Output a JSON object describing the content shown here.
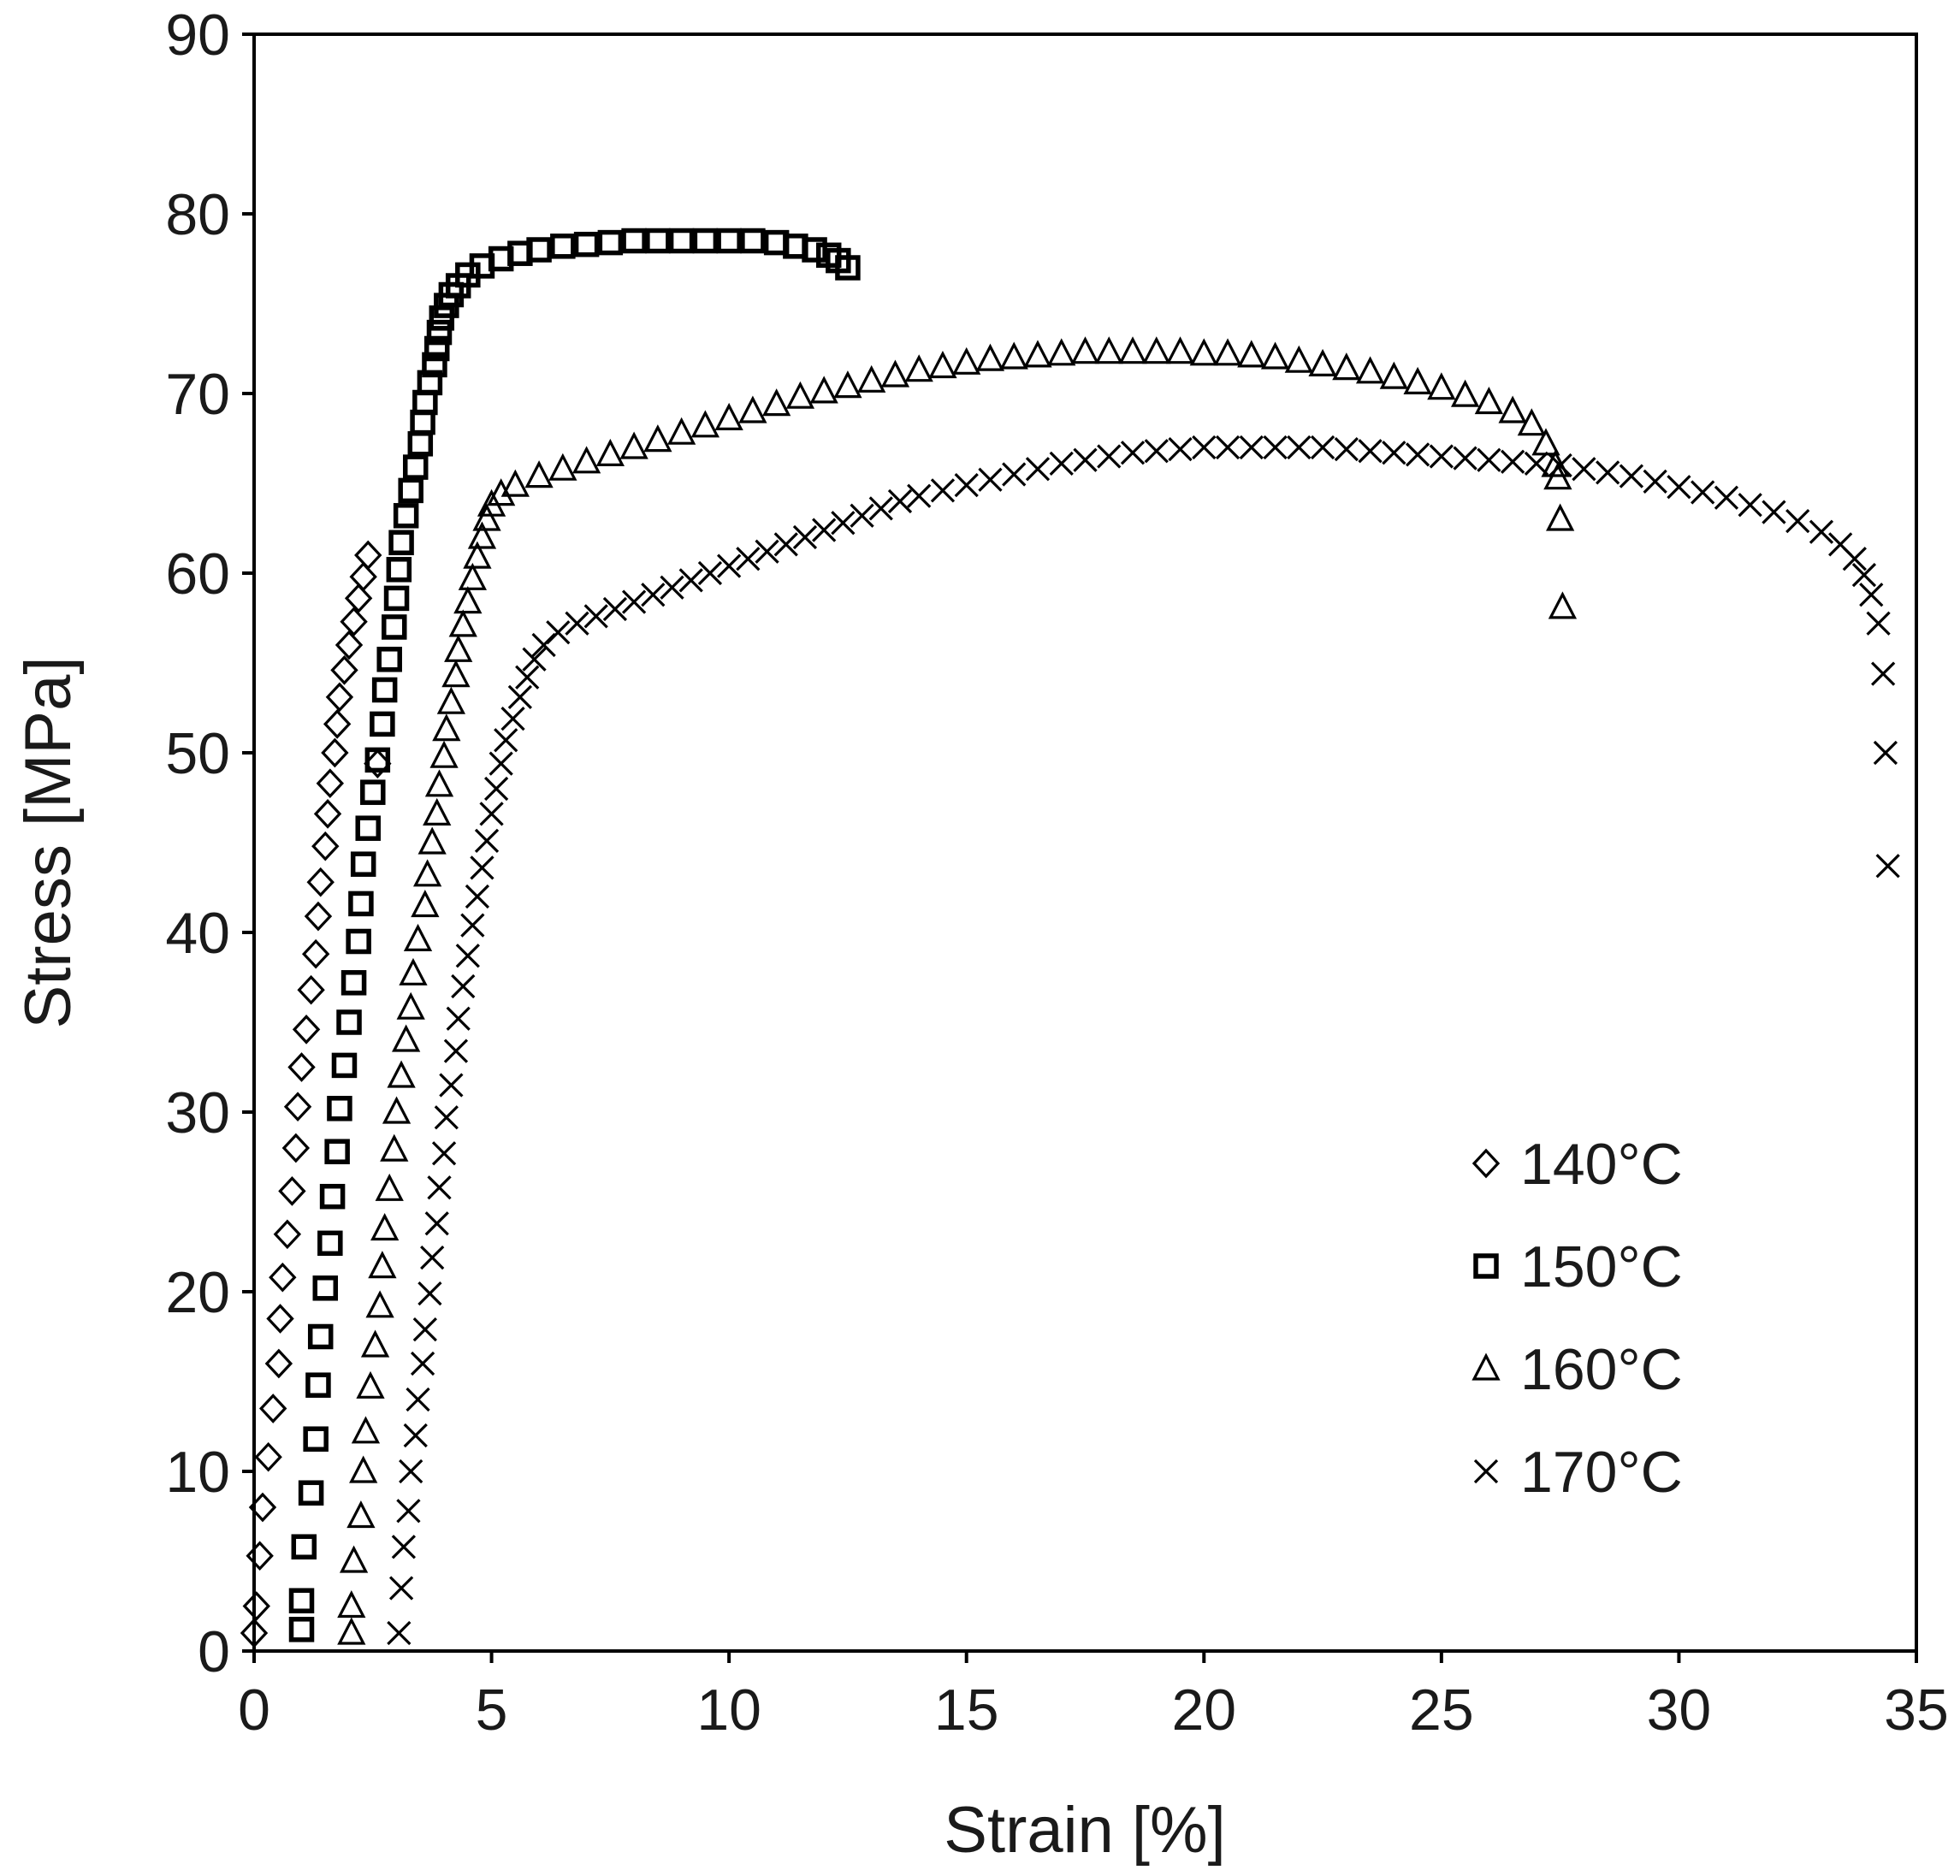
{
  "chart_data": {
    "type": "scatter",
    "title": "",
    "xlabel": "Strain [%]",
    "ylabel": "Stress [MPa]",
    "xlim": [
      0,
      35
    ],
    "ylim": [
      0,
      90
    ],
    "xticks": [
      0,
      5,
      10,
      15,
      20,
      25,
      30,
      35
    ],
    "yticks": [
      0,
      10,
      20,
      30,
      40,
      50,
      60,
      70,
      80,
      90
    ],
    "grid": false,
    "legend_position": "bottom-right",
    "series": [
      {
        "name": "140°C",
        "marker": "diamond",
        "points": [
          [
            0,
            1
          ],
          [
            0.05,
            2.5
          ],
          [
            0.12,
            5.3
          ],
          [
            0.18,
            8
          ],
          [
            0.3,
            10.8
          ],
          [
            0.4,
            13.5
          ],
          [
            0.52,
            16
          ],
          [
            0.55,
            18.5
          ],
          [
            0.6,
            20.8
          ],
          [
            0.7,
            23.2
          ],
          [
            0.8,
            25.6
          ],
          [
            0.88,
            28
          ],
          [
            0.92,
            30.3
          ],
          [
            1.0,
            32.5
          ],
          [
            1.1,
            34.6
          ],
          [
            1.2,
            36.8
          ],
          [
            1.3,
            38.8
          ],
          [
            1.35,
            40.9
          ],
          [
            1.4,
            42.8
          ],
          [
            1.5,
            44.8
          ],
          [
            1.55,
            46.6
          ],
          [
            1.6,
            48.3
          ],
          [
            1.7,
            50
          ],
          [
            1.75,
            51.6
          ],
          [
            1.8,
            53.1
          ],
          [
            1.9,
            54.6
          ],
          [
            2.0,
            56
          ],
          [
            2.1,
            57.3
          ],
          [
            2.2,
            58.6
          ],
          [
            2.3,
            59.8
          ],
          [
            2.4,
            61
          ],
          [
            2.6,
            49.4
          ]
        ]
      },
      {
        "name": "150°C",
        "marker": "square",
        "points": [
          [
            1.0,
            1.2
          ],
          [
            1.0,
            2.8
          ],
          [
            1.05,
            5.8
          ],
          [
            1.2,
            8.8
          ],
          [
            1.3,
            11.8
          ],
          [
            1.35,
            14.8
          ],
          [
            1.4,
            17.5
          ],
          [
            1.5,
            20.2
          ],
          [
            1.6,
            22.7
          ],
          [
            1.65,
            25.3
          ],
          [
            1.75,
            27.8
          ],
          [
            1.8,
            30.2
          ],
          [
            1.9,
            32.6
          ],
          [
            2.0,
            35
          ],
          [
            2.1,
            37.2
          ],
          [
            2.2,
            39.5
          ],
          [
            2.25,
            41.6
          ],
          [
            2.3,
            43.8
          ],
          [
            2.4,
            45.8
          ],
          [
            2.5,
            47.8
          ],
          [
            2.6,
            49.6
          ],
          [
            2.7,
            51.6
          ],
          [
            2.75,
            53.5
          ],
          [
            2.85,
            55.2
          ],
          [
            2.95,
            57
          ],
          [
            3.0,
            58.6
          ],
          [
            3.05,
            60.2
          ],
          [
            3.1,
            61.7
          ],
          [
            3.2,
            63.2
          ],
          [
            3.3,
            64.6
          ],
          [
            3.4,
            65.9
          ],
          [
            3.5,
            67.2
          ],
          [
            3.55,
            68.4
          ],
          [
            3.6,
            69.5
          ],
          [
            3.7,
            70.6
          ],
          [
            3.8,
            71.6
          ],
          [
            3.85,
            72.5
          ],
          [
            3.9,
            73.4
          ],
          [
            3.95,
            74.2
          ],
          [
            4.05,
            74.9
          ],
          [
            4.15,
            75.5
          ],
          [
            4.3,
            76
          ],
          [
            4.5,
            76.6
          ],
          [
            4.8,
            77.1
          ],
          [
            5.2,
            77.5
          ],
          [
            5.6,
            77.8
          ],
          [
            6.0,
            78
          ],
          [
            6.5,
            78.2
          ],
          [
            7.0,
            78.3
          ],
          [
            7.5,
            78.4
          ],
          [
            8.0,
            78.5
          ],
          [
            8.5,
            78.5
          ],
          [
            9.0,
            78.5
          ],
          [
            9.5,
            78.5
          ],
          [
            10.0,
            78.5
          ],
          [
            10.5,
            78.5
          ],
          [
            11.0,
            78.4
          ],
          [
            11.4,
            78.2
          ],
          [
            11.8,
            78
          ],
          [
            12.1,
            77.7
          ],
          [
            12.3,
            77.4
          ],
          [
            12.5,
            77
          ]
        ]
      },
      {
        "name": "160°C",
        "marker": "triangle",
        "points": [
          [
            2.05,
            1
          ],
          [
            2.05,
            2.5
          ],
          [
            2.1,
            5
          ],
          [
            2.25,
            7.5
          ],
          [
            2.3,
            10
          ],
          [
            2.35,
            12.2
          ],
          [
            2.45,
            14.7
          ],
          [
            2.55,
            17
          ],
          [
            2.65,
            19.2
          ],
          [
            2.7,
            21.4
          ],
          [
            2.75,
            23.5
          ],
          [
            2.85,
            25.7
          ],
          [
            2.95,
            27.9
          ],
          [
            3.0,
            30
          ],
          [
            3.1,
            32
          ],
          [
            3.2,
            34
          ],
          [
            3.3,
            35.8
          ],
          [
            3.35,
            37.7
          ],
          [
            3.45,
            39.6
          ],
          [
            3.6,
            41.5
          ],
          [
            3.65,
            43.2
          ],
          [
            3.75,
            45
          ],
          [
            3.85,
            46.6
          ],
          [
            3.9,
            48.2
          ],
          [
            4.0,
            49.8
          ],
          [
            4.05,
            51.3
          ],
          [
            4.15,
            52.8
          ],
          [
            4.25,
            54.3
          ],
          [
            4.3,
            55.7
          ],
          [
            4.4,
            57.1
          ],
          [
            4.5,
            58.4
          ],
          [
            4.6,
            59.7
          ],
          [
            4.7,
            60.9
          ],
          [
            4.8,
            62
          ],
          [
            4.9,
            63
          ],
          [
            5.0,
            63.8
          ],
          [
            5.2,
            64.4
          ],
          [
            5.5,
            64.9
          ],
          [
            6.0,
            65.4
          ],
          [
            6.5,
            65.8
          ],
          [
            7.0,
            66.2
          ],
          [
            7.5,
            66.6
          ],
          [
            8.0,
            67
          ],
          [
            8.5,
            67.4
          ],
          [
            9.0,
            67.8
          ],
          [
            9.5,
            68.2
          ],
          [
            10.0,
            68.6
          ],
          [
            10.5,
            69
          ],
          [
            11.0,
            69.4
          ],
          [
            11.5,
            69.8
          ],
          [
            12.0,
            70.1
          ],
          [
            12.5,
            70.4
          ],
          [
            13.0,
            70.7
          ],
          [
            13.5,
            71
          ],
          [
            14.0,
            71.3
          ],
          [
            14.5,
            71.5
          ],
          [
            15.0,
            71.7
          ],
          [
            15.5,
            71.9
          ],
          [
            16.0,
            72
          ],
          [
            16.5,
            72.1
          ],
          [
            17.0,
            72.2
          ],
          [
            17.5,
            72.3
          ],
          [
            18.0,
            72.3
          ],
          [
            18.5,
            72.3
          ],
          [
            19.0,
            72.3
          ],
          [
            19.5,
            72.3
          ],
          [
            20.0,
            72.2
          ],
          [
            20.5,
            72.2
          ],
          [
            21.0,
            72.1
          ],
          [
            21.5,
            72
          ],
          [
            22.0,
            71.8
          ],
          [
            22.5,
            71.6
          ],
          [
            23.0,
            71.4
          ],
          [
            23.5,
            71.2
          ],
          [
            24.0,
            70.9
          ],
          [
            24.5,
            70.6
          ],
          [
            25.0,
            70.3
          ],
          [
            25.5,
            69.9
          ],
          [
            26.0,
            69.5
          ],
          [
            26.5,
            69
          ],
          [
            26.9,
            68.3
          ],
          [
            27.2,
            67.2
          ],
          [
            27.4,
            66
          ],
          [
            27.45,
            65.3
          ],
          [
            27.5,
            63
          ],
          [
            27.55,
            58.1
          ]
        ]
      },
      {
        "name": "170°C",
        "marker": "x",
        "points": [
          [
            3.05,
            1
          ],
          [
            3.1,
            3.5
          ],
          [
            3.15,
            5.8
          ],
          [
            3.25,
            7.8
          ],
          [
            3.3,
            10
          ],
          [
            3.4,
            12
          ],
          [
            3.45,
            14
          ],
          [
            3.55,
            16
          ],
          [
            3.6,
            17.9
          ],
          [
            3.7,
            19.9
          ],
          [
            3.75,
            21.9
          ],
          [
            3.85,
            23.8
          ],
          [
            3.9,
            25.8
          ],
          [
            4.0,
            27.7
          ],
          [
            4.05,
            29.7
          ],
          [
            4.15,
            31.5
          ],
          [
            4.25,
            33.4
          ],
          [
            4.3,
            35.2
          ],
          [
            4.4,
            37
          ],
          [
            4.5,
            38.7
          ],
          [
            4.6,
            40.4
          ],
          [
            4.7,
            42
          ],
          [
            4.8,
            43.6
          ],
          [
            4.9,
            45.1
          ],
          [
            5.0,
            46.6
          ],
          [
            5.1,
            48
          ],
          [
            5.2,
            49.4
          ],
          [
            5.3,
            50.7
          ],
          [
            5.45,
            51.9
          ],
          [
            5.6,
            53.1
          ],
          [
            5.75,
            54.2
          ],
          [
            5.9,
            55.2
          ],
          [
            6.1,
            56
          ],
          [
            6.4,
            56.7
          ],
          [
            6.8,
            57.2
          ],
          [
            7.2,
            57.6
          ],
          [
            7.6,
            58
          ],
          [
            8.0,
            58.4
          ],
          [
            8.4,
            58.8
          ],
          [
            8.8,
            59.2
          ],
          [
            9.2,
            59.6
          ],
          [
            9.6,
            60
          ],
          [
            10.0,
            60.4
          ],
          [
            10.4,
            60.8
          ],
          [
            10.8,
            61.2
          ],
          [
            11.2,
            61.6
          ],
          [
            11.6,
            62
          ],
          [
            12.0,
            62.4
          ],
          [
            12.4,
            62.8
          ],
          [
            12.8,
            63.2
          ],
          [
            13.2,
            63.6
          ],
          [
            13.6,
            64
          ],
          [
            14.0,
            64.3
          ],
          [
            14.5,
            64.6
          ],
          [
            15.0,
            64.9
          ],
          [
            15.5,
            65.2
          ],
          [
            16.0,
            65.5
          ],
          [
            16.5,
            65.8
          ],
          [
            17.0,
            66.1
          ],
          [
            17.5,
            66.3
          ],
          [
            18.0,
            66.5
          ],
          [
            18.5,
            66.7
          ],
          [
            19.0,
            66.8
          ],
          [
            19.5,
            66.9
          ],
          [
            20.0,
            67
          ],
          [
            20.5,
            67
          ],
          [
            21.0,
            67
          ],
          [
            21.5,
            67
          ],
          [
            22.0,
            67
          ],
          [
            22.5,
            67
          ],
          [
            23.0,
            66.9
          ],
          [
            23.5,
            66.8
          ],
          [
            24.0,
            66.7
          ],
          [
            24.5,
            66.6
          ],
          [
            25.0,
            66.5
          ],
          [
            25.5,
            66.4
          ],
          [
            26.0,
            66.3
          ],
          [
            26.5,
            66.2
          ],
          [
            27.0,
            66.1
          ],
          [
            27.5,
            66
          ],
          [
            28.0,
            65.8
          ],
          [
            28.5,
            65.6
          ],
          [
            29.0,
            65.4
          ],
          [
            29.5,
            65.1
          ],
          [
            30.0,
            64.8
          ],
          [
            30.5,
            64.5
          ],
          [
            31.0,
            64.2
          ],
          [
            31.5,
            63.8
          ],
          [
            32.0,
            63.4
          ],
          [
            32.5,
            62.9
          ],
          [
            33.0,
            62.3
          ],
          [
            33.4,
            61.6
          ],
          [
            33.7,
            60.8
          ],
          [
            33.9,
            59.9
          ],
          [
            34.05,
            58.8
          ],
          [
            34.2,
            57.2
          ],
          [
            34.3,
            54.4
          ],
          [
            34.35,
            50
          ],
          [
            34.4,
            43.7
          ]
        ]
      }
    ]
  }
}
